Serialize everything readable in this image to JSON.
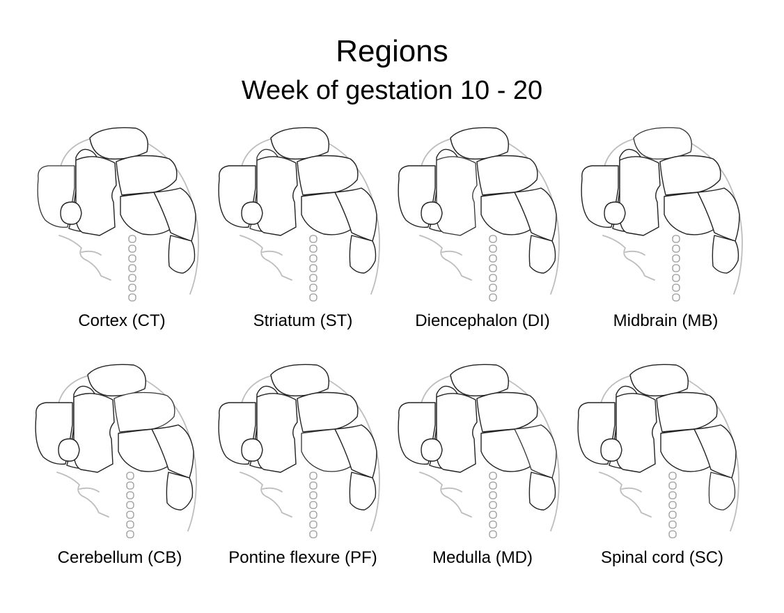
{
  "header": {
    "title": "Regions",
    "subtitle": "Week of gestation 10 - 20"
  },
  "regions": [
    {
      "key": "CT",
      "label": "Cortex (CT)",
      "color": "#e57373"
    },
    {
      "key": "ST",
      "label": "Striatum (ST)",
      "color": "#f0a040"
    },
    {
      "key": "DI",
      "label": "Diencephalon (DI)",
      "color": "#5aaa3c"
    },
    {
      "key": "MB",
      "label": "Midbrain (MB)",
      "color": "#4fa87a"
    },
    {
      "key": "CB",
      "label": "Cerebellum (CB)",
      "color": "#44b3b8"
    },
    {
      "key": "PF",
      "label": "Pontine flexure (PF)",
      "color": "#4da6dc"
    },
    {
      "key": "MD",
      "label": "Medulla (MD)",
      "color": "#8a8ac8"
    },
    {
      "key": "SC",
      "label": "Spinal cord (SC)",
      "color": "#b07ab8"
    }
  ]
}
